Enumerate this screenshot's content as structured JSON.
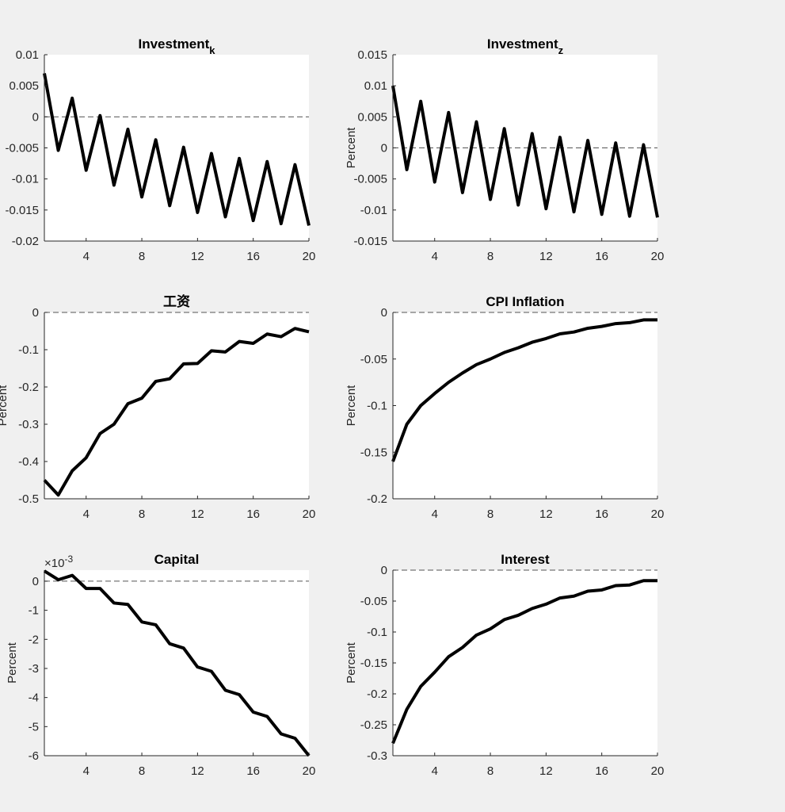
{
  "chart_data": [
    {
      "type": "line",
      "title": "Investment",
      "title_sub": "k",
      "ylabel": "",
      "xlim": [
        1,
        20
      ],
      "ylim": [
        -0.02,
        0.01
      ],
      "xticks": [
        4,
        8,
        12,
        16,
        20
      ],
      "yticks": [
        -0.02,
        -0.015,
        -0.01,
        -0.005,
        0,
        0.005,
        0.01
      ],
      "ytick_labels": [
        "-0.02",
        "-0.015",
        "-0.01",
        "-0.005",
        "0",
        "0.005",
        "0.01"
      ],
      "exponent_label": "",
      "x": [
        1,
        2,
        3,
        4,
        5,
        6,
        7,
        8,
        9,
        10,
        11,
        12,
        13,
        14,
        15,
        16,
        17,
        18,
        19,
        20
      ],
      "values": [
        0.007,
        -0.0054,
        0.003,
        -0.0086,
        0.0002,
        -0.011,
        -0.002,
        -0.0129,
        -0.0037,
        -0.0143,
        -0.0049,
        -0.0154,
        -0.0059,
        -0.0161,
        -0.0067,
        -0.0167,
        -0.0072,
        -0.0172,
        -0.0077,
        -0.0175
      ],
      "zero_line": true,
      "line_color": "#000000"
    },
    {
      "type": "line",
      "title": "Investment",
      "title_sub": "z",
      "ylabel": "Percent",
      "xlim": [
        1,
        20
      ],
      "ylim": [
        -0.015,
        0.015
      ],
      "xticks": [
        4,
        8,
        12,
        16,
        20
      ],
      "yticks": [
        -0.015,
        -0.01,
        -0.005,
        0,
        0.005,
        0.01,
        0.015
      ],
      "ytick_labels": [
        "-0.015",
        "-0.01",
        "-0.005",
        "0",
        "0.005",
        "0.01",
        "0.015"
      ],
      "exponent_label": "",
      "x": [
        1,
        2,
        3,
        4,
        5,
        6,
        7,
        8,
        9,
        10,
        11,
        12,
        13,
        14,
        15,
        16,
        17,
        18,
        19,
        20
      ],
      "values": [
        0.01,
        -0.0035,
        0.0075,
        -0.0055,
        0.0057,
        -0.0072,
        0.0042,
        -0.0083,
        0.0031,
        -0.0092,
        0.0023,
        -0.0098,
        0.0017,
        -0.0103,
        0.0012,
        -0.0107,
        0.0008,
        -0.011,
        0.0005,
        -0.0112
      ],
      "zero_line": true,
      "line_color": "#000000"
    },
    {
      "type": "line",
      "title": "工资",
      "title_sub": "",
      "ylabel": "Percent",
      "xlim": [
        1,
        20
      ],
      "ylim": [
        -0.5,
        0
      ],
      "xticks": [
        4,
        8,
        12,
        16,
        20
      ],
      "yticks": [
        -0.5,
        -0.4,
        -0.3,
        -0.2,
        -0.1,
        0
      ],
      "ytick_labels": [
        "-0.5",
        "-0.4",
        "-0.3",
        "-0.2",
        "-0.1",
        "0"
      ],
      "exponent_label": "",
      "x": [
        1,
        2,
        3,
        4,
        5,
        6,
        7,
        8,
        9,
        10,
        11,
        12,
        13,
        14,
        15,
        16,
        17,
        18,
        19,
        20
      ],
      "values": [
        -0.45,
        -0.49,
        -0.425,
        -0.39,
        -0.325,
        -0.3,
        -0.245,
        -0.23,
        -0.185,
        -0.178,
        -0.138,
        -0.137,
        -0.103,
        -0.106,
        -0.078,
        -0.083,
        -0.058,
        -0.065,
        -0.043,
        -0.052
      ],
      "zero_line": true,
      "line_color": "#000000"
    },
    {
      "type": "line",
      "title": "CPI Inflation",
      "title_sub": "",
      "ylabel": "Percent",
      "xlim": [
        1,
        20
      ],
      "ylim": [
        -0.2,
        0
      ],
      "xticks": [
        4,
        8,
        12,
        16,
        20
      ],
      "yticks": [
        -0.2,
        -0.15,
        -0.1,
        -0.05,
        0
      ],
      "ytick_labels": [
        "-0.2",
        "-0.15",
        "-0.1",
        "-0.05",
        "0"
      ],
      "exponent_label": "",
      "x": [
        1,
        2,
        3,
        4,
        5,
        6,
        7,
        8,
        9,
        10,
        11,
        12,
        13,
        14,
        15,
        16,
        17,
        18,
        19,
        20
      ],
      "values": [
        -0.16,
        -0.12,
        -0.1,
        -0.087,
        -0.075,
        -0.065,
        -0.056,
        -0.05,
        -0.043,
        -0.038,
        -0.032,
        -0.028,
        -0.023,
        -0.021,
        -0.017,
        -0.015,
        -0.012,
        -0.011,
        -0.008,
        -0.008
      ],
      "zero_line": true,
      "line_color": "#000000"
    },
    {
      "type": "line",
      "title": "Capital",
      "title_sub": "",
      "ylabel": "Percent",
      "xlim": [
        1,
        20
      ],
      "ylim": [
        -0.006,
        0.00038
      ],
      "xticks": [
        4,
        8,
        12,
        16,
        20
      ],
      "yticks": [
        -0.006,
        -0.005,
        -0.004,
        -0.003,
        -0.002,
        -0.001,
        0
      ],
      "ytick_labels": [
        "-6",
        "-5",
        "-4",
        "-3",
        "-2",
        "-1",
        "0"
      ],
      "exponent_label": "×10",
      "exponent_power": "-3",
      "x": [
        1,
        2,
        3,
        4,
        5,
        6,
        7,
        8,
        9,
        10,
        11,
        12,
        13,
        14,
        15,
        16,
        17,
        18,
        19,
        20
      ],
      "values": [
        0.00035,
        5e-05,
        0.0002,
        -0.00025,
        -0.00025,
        -0.00075,
        -0.0008,
        -0.0014,
        -0.0015,
        -0.00215,
        -0.0023,
        -0.00295,
        -0.0031,
        -0.00375,
        -0.0039,
        -0.0045,
        -0.00465,
        -0.00525,
        -0.0054,
        -0.006
      ],
      "zero_line": true,
      "line_color": "#000000"
    },
    {
      "type": "line",
      "title": "Interest",
      "title_sub": "",
      "ylabel": "Percent",
      "xlim": [
        1,
        20
      ],
      "ylim": [
        -0.3,
        0
      ],
      "xticks": [
        4,
        8,
        12,
        16,
        20
      ],
      "yticks": [
        -0.3,
        -0.25,
        -0.2,
        -0.15,
        -0.1,
        -0.05,
        0
      ],
      "ytick_labels": [
        "-0.3",
        "-0.25",
        "-0.2",
        "-0.15",
        "-0.1",
        "-0.05",
        "0"
      ],
      "exponent_label": "",
      "x": [
        1,
        2,
        3,
        4,
        5,
        6,
        7,
        8,
        9,
        10,
        11,
        12,
        13,
        14,
        15,
        16,
        17,
        18,
        19,
        20
      ],
      "values": [
        -0.28,
        -0.225,
        -0.188,
        -0.165,
        -0.14,
        -0.125,
        -0.105,
        -0.095,
        -0.08,
        -0.073,
        -0.062,
        -0.055,
        -0.045,
        -0.042,
        -0.034,
        -0.032,
        -0.025,
        -0.024,
        -0.017,
        -0.017
      ],
      "zero_line": true,
      "line_color": "#000000"
    }
  ],
  "colors": {
    "figure_background": "#f0f0f0",
    "axes_background": "#ffffff",
    "axis_color": "#262626",
    "zero_line": "#555555"
  }
}
